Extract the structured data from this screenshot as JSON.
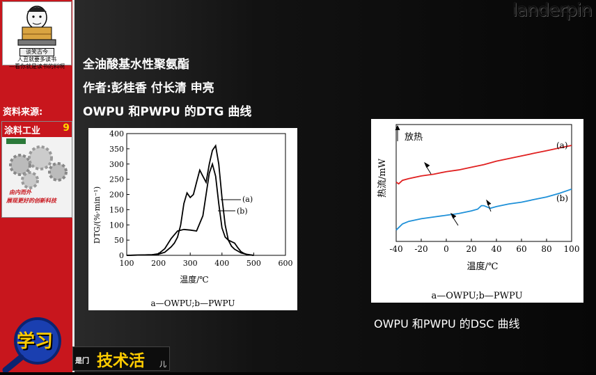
{
  "sidebar": {
    "mascot_caption_line1": "谈笑古今",
    "mascot_caption_line2": "人丑就要多读书",
    "mascot_caption_line3": "—看你就是读书的料啊",
    "source_label": "资料来源:",
    "magazine_title": "涂料工业",
    "magazine_issue": "9",
    "magazine_tagline_1": "由内而外",
    "magazine_tagline_2": "展现更好的创新科技"
  },
  "brand": {
    "logo": "landerpin"
  },
  "slide": {
    "title": "全油酸基水性聚氨酯",
    "authors": "作者:彭桂香 付长清 申亮",
    "dtg_heading": "OWPU 和PWPU 的DTG 曲线",
    "dsc_caption": "OWPU 和PWPU 的DSC 曲线"
  },
  "badge": {
    "main_text": "学习",
    "tagline_prefix": "是门",
    "tagline_main": "技术活",
    "tagline_suffix": "儿"
  },
  "colors": {
    "sidebar": "#c8161d",
    "badge_yellow": "#ffcc00",
    "dsc_a": "#e02020",
    "dsc_b": "#1e90d8"
  },
  "chart_data": [
    {
      "type": "line",
      "title": "",
      "xlabel": "温度/℃",
      "ylabel": "DTG/(%·min⁻¹)",
      "xlim": [
        100,
        600
      ],
      "ylim": [
        0,
        400
      ],
      "xticks": [
        100,
        200,
        300,
        400,
        500,
        600
      ],
      "yticks": [
        0,
        50,
        100,
        150,
        200,
        250,
        300,
        350,
        400
      ],
      "legend_caption": "a—OWPU;b—PWPU",
      "series": [
        {
          "name": "(a)",
          "x": [
            100,
            180,
            200,
            220,
            240,
            250,
            260,
            270,
            280,
            290,
            300,
            310,
            320,
            330,
            340,
            350,
            360,
            370,
            380,
            390,
            400,
            410,
            420,
            430,
            440,
            450,
            460,
            480,
            500
          ],
          "y": [
            0,
            2,
            4,
            10,
            28,
            40,
            60,
            100,
            170,
            205,
            190,
            200,
            240,
            280,
            260,
            240,
            300,
            345,
            360,
            300,
            190,
            100,
            50,
            30,
            20,
            14,
            8,
            3,
            0
          ]
        },
        {
          "name": "(b)",
          "x": [
            100,
            180,
            200,
            220,
            240,
            260,
            280,
            300,
            320,
            340,
            350,
            360,
            370,
            380,
            390,
            400,
            410,
            420,
            430,
            440,
            450,
            460,
            470,
            480,
            500
          ],
          "y": [
            0,
            2,
            5,
            22,
            55,
            80,
            85,
            83,
            80,
            130,
            200,
            270,
            300,
            260,
            170,
            90,
            60,
            50,
            45,
            40,
            25,
            12,
            6,
            2,
            0
          ]
        }
      ]
    },
    {
      "type": "line",
      "title": "",
      "xlabel": "温度/℃",
      "ylabel": "热流/mW",
      "annotation": "放热",
      "xlim": [
        -40,
        100
      ],
      "xticks": [
        -40,
        -20,
        0,
        20,
        40,
        60,
        80,
        100
      ],
      "legend_caption": "a—OWPU;b—PWPU",
      "series": [
        {
          "name": "(a)",
          "x": [
            -40,
            -38,
            -35,
            -30,
            -20,
            -10,
            0,
            10,
            20,
            30,
            40,
            50,
            60,
            70,
            80,
            90,
            100
          ],
          "y": [
            0.6,
            0.58,
            0.62,
            0.64,
            0.67,
            0.69,
            0.72,
            0.74,
            0.77,
            0.8,
            0.84,
            0.87,
            0.9,
            0.93,
            0.96,
            0.99,
            1.02
          ]
        },
        {
          "name": "(b)",
          "x": [
            -40,
            -35,
            -30,
            -20,
            -10,
            0,
            10,
            20,
            25,
            28,
            30,
            35,
            40,
            50,
            60,
            70,
            80,
            90,
            100
          ],
          "y": [
            0.05,
            0.12,
            0.15,
            0.18,
            0.2,
            0.22,
            0.24,
            0.27,
            0.29,
            0.33,
            0.33,
            0.3,
            0.32,
            0.35,
            0.37,
            0.4,
            0.43,
            0.47,
            0.52
          ]
        }
      ]
    }
  ]
}
